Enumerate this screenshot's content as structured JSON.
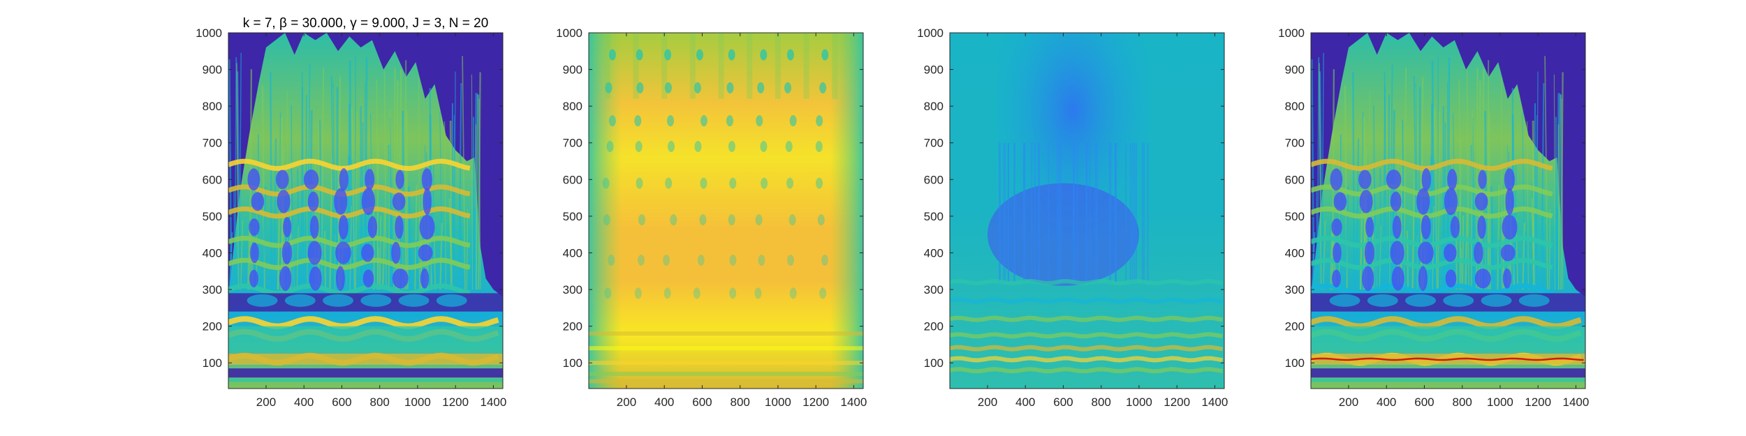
{
  "figure": {
    "colormap": [
      "#3e26a8",
      "#4650f5",
      "#2e87f7",
      "#14b5da",
      "#2dc5a8",
      "#81cc59",
      "#d7ba33",
      "#fbd430",
      "#f9fb15",
      "#d2190c"
    ],
    "background": "#ffffff"
  },
  "chart_data": [
    {
      "type": "heatmap",
      "title": "k = 7, β = 30.000, γ = 9.000, J = 3, N = 20",
      "xlim": [
        1,
        1450
      ],
      "ylim": [
        30,
        1000
      ],
      "xticks": [
        200,
        400,
        600,
        800,
        1000,
        1200,
        1400
      ],
      "yticks": [
        100,
        200,
        300,
        400,
        500,
        600,
        700,
        800,
        900,
        1000
      ],
      "grid": false,
      "colorscale": "parula"
    },
    {
      "type": "heatmap",
      "title": "",
      "xlim": [
        1,
        1450
      ],
      "ylim": [
        30,
        1000
      ],
      "xticks": [
        200,
        400,
        600,
        800,
        1000,
        1200,
        1400
      ],
      "yticks": [
        100,
        200,
        300,
        400,
        500,
        600,
        700,
        800,
        900,
        1000
      ],
      "grid": false,
      "colorscale": "parula"
    },
    {
      "type": "heatmap",
      "title": "",
      "xlim": [
        1,
        1450
      ],
      "ylim": [
        30,
        1000
      ],
      "xticks": [
        200,
        400,
        600,
        800,
        1000,
        1200,
        1400
      ],
      "yticks": [
        100,
        200,
        300,
        400,
        500,
        600,
        700,
        800,
        900,
        1000
      ],
      "grid": false,
      "colorscale": "parula"
    },
    {
      "type": "heatmap",
      "title": "",
      "xlim": [
        1,
        1450
      ],
      "ylim": [
        30,
        1000
      ],
      "xticks": [
        200,
        400,
        600,
        800,
        1000,
        1200,
        1400
      ],
      "yticks": [
        100,
        200,
        300,
        400,
        500,
        600,
        700,
        800,
        900,
        1000
      ],
      "grid": false,
      "colorscale": "parula"
    }
  ]
}
